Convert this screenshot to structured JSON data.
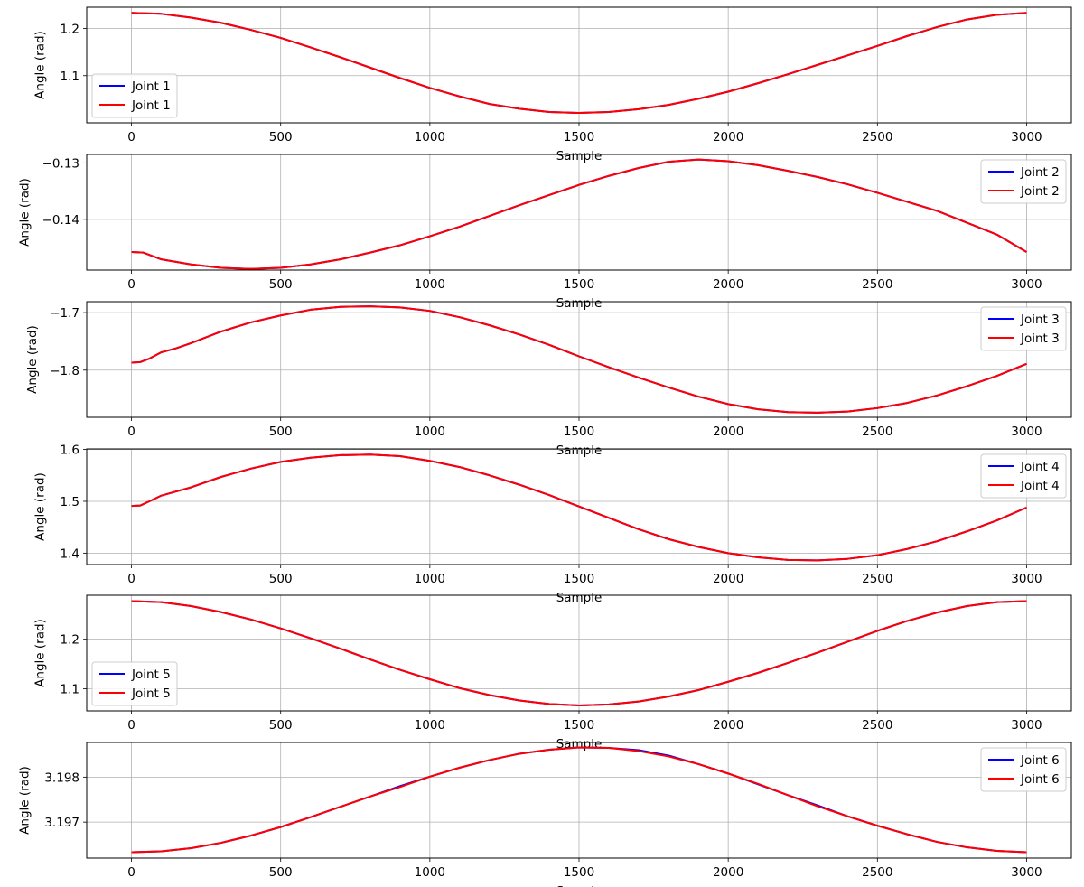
{
  "chart_data": [
    {
      "type": "line",
      "xlabel": "Sample",
      "ylabel": "Angle (rad)",
      "xlim": [
        -150,
        3150
      ],
      "ylim": [
        1.0,
        1.245
      ],
      "xticks": [
        0,
        500,
        1000,
        1500,
        2000,
        2500,
        3000
      ],
      "yticks": [
        1.1,
        1.2
      ],
      "grid": true,
      "legend_position": "lower-left",
      "x": [
        0,
        100,
        200,
        300,
        400,
        500,
        600,
        700,
        800,
        900,
        1000,
        1100,
        1200,
        1300,
        1400,
        1500,
        1600,
        1700,
        1800,
        1900,
        2000,
        2100,
        2200,
        2300,
        2400,
        2500,
        2600,
        2700,
        2800,
        2900,
        3000
      ],
      "series": [
        {
          "name": "Joint 1",
          "color": "#0000ff",
          "values": [
            1.233,
            1.231,
            1.223,
            1.212,
            1.197,
            1.18,
            1.16,
            1.139,
            1.117,
            1.095,
            1.074,
            1.056,
            1.04,
            1.03,
            1.023,
            1.021,
            1.023,
            1.029,
            1.038,
            1.051,
            1.066,
            1.084,
            1.103,
            1.123,
            1.143,
            1.163,
            1.184,
            1.203,
            1.219,
            1.229,
            1.233
          ]
        },
        {
          "name": "Joint 1",
          "color": "#ff0000",
          "values": [
            1.233,
            1.231,
            1.223,
            1.212,
            1.197,
            1.18,
            1.16,
            1.139,
            1.117,
            1.095,
            1.074,
            1.056,
            1.04,
            1.03,
            1.023,
            1.021,
            1.023,
            1.029,
            1.038,
            1.051,
            1.066,
            1.084,
            1.103,
            1.123,
            1.143,
            1.163,
            1.184,
            1.203,
            1.219,
            1.229,
            1.233
          ]
        }
      ]
    },
    {
      "type": "line",
      "xlabel": "Sample",
      "ylabel": "Angle (rad)",
      "xlim": [
        -150,
        3150
      ],
      "ylim": [
        -0.149,
        -0.1285
      ],
      "xticks": [
        0,
        500,
        1000,
        1500,
        2000,
        2500,
        3000
      ],
      "yticks": [
        -0.14,
        -0.13
      ],
      "grid": true,
      "legend_position": "upper-right",
      "x": [
        0,
        40,
        100,
        200,
        300,
        400,
        500,
        600,
        700,
        800,
        900,
        1000,
        1100,
        1200,
        1300,
        1400,
        1500,
        1600,
        1700,
        1800,
        1900,
        2000,
        2100,
        2200,
        2300,
        2400,
        2500,
        2600,
        2700,
        2800,
        2900,
        3000
      ],
      "series": [
        {
          "name": "Joint 2",
          "color": "#0000ff",
          "values": [
            -0.1458,
            -0.1459,
            -0.1471,
            -0.148,
            -0.1486,
            -0.1488,
            -0.1486,
            -0.148,
            -0.1471,
            -0.1459,
            -0.1446,
            -0.143,
            -0.1413,
            -0.1394,
            -0.1375,
            -0.1357,
            -0.1339,
            -0.1323,
            -0.1309,
            -0.1298,
            -0.1294,
            -0.1297,
            -0.1304,
            -0.1314,
            -0.1325,
            -0.1338,
            -0.1353,
            -0.1369,
            -0.1385,
            -0.1406,
            -0.1427,
            -0.1458
          ]
        },
        {
          "name": "Joint 2",
          "color": "#ff0000",
          "values": [
            -0.1458,
            -0.1459,
            -0.1471,
            -0.148,
            -0.1486,
            -0.1488,
            -0.1486,
            -0.148,
            -0.1471,
            -0.1459,
            -0.1446,
            -0.143,
            -0.1413,
            -0.1394,
            -0.1375,
            -0.1357,
            -0.1339,
            -0.1323,
            -0.1309,
            -0.1298,
            -0.1294,
            -0.1297,
            -0.1304,
            -0.1314,
            -0.1325,
            -0.1338,
            -0.1353,
            -0.1369,
            -0.1385,
            -0.1406,
            -0.1427,
            -0.1458
          ]
        }
      ]
    },
    {
      "type": "line",
      "xlabel": "Sample",
      "ylabel": "Angle (rad)",
      "xlim": [
        -150,
        3150
      ],
      "ylim": [
        -1.882,
        -1.681
      ],
      "xticks": [
        0,
        500,
        1000,
        1500,
        2000,
        2500,
        3000
      ],
      "yticks": [
        -1.8,
        -1.7
      ],
      "grid": true,
      "legend_position": "upper-right",
      "x": [
        0,
        30,
        60,
        100,
        150,
        200,
        300,
        400,
        500,
        600,
        700,
        800,
        900,
        1000,
        1100,
        1200,
        1300,
        1400,
        1500,
        1600,
        1700,
        1800,
        1900,
        2000,
        2100,
        2200,
        2300,
        2400,
        2500,
        2600,
        2700,
        2800,
        2900,
        3000
      ],
      "series": [
        {
          "name": "Joint 3",
          "color": "#0000ff",
          "values": [
            -1.787,
            -1.786,
            -1.78,
            -1.769,
            -1.762,
            -1.753,
            -1.733,
            -1.717,
            -1.705,
            -1.695,
            -1.69,
            -1.689,
            -1.691,
            -1.697,
            -1.708,
            -1.722,
            -1.738,
            -1.756,
            -1.776,
            -1.795,
            -1.813,
            -1.83,
            -1.846,
            -1.859,
            -1.868,
            -1.873,
            -1.874,
            -1.872,
            -1.866,
            -1.857,
            -1.844,
            -1.828,
            -1.81,
            -1.789
          ]
        },
        {
          "name": "Joint 3",
          "color": "#ff0000",
          "values": [
            -1.787,
            -1.786,
            -1.78,
            -1.769,
            -1.762,
            -1.753,
            -1.733,
            -1.717,
            -1.705,
            -1.695,
            -1.69,
            -1.689,
            -1.691,
            -1.697,
            -1.708,
            -1.722,
            -1.738,
            -1.756,
            -1.776,
            -1.795,
            -1.813,
            -1.83,
            -1.846,
            -1.859,
            -1.868,
            -1.873,
            -1.874,
            -1.872,
            -1.866,
            -1.857,
            -1.844,
            -1.828,
            -1.81,
            -1.789
          ]
        }
      ]
    },
    {
      "type": "line",
      "xlabel": "Sample",
      "ylabel": "Angle (rad)",
      "xlim": [
        -150,
        3150
      ],
      "ylim": [
        1.378,
        1.601
      ],
      "xticks": [
        0,
        500,
        1000,
        1500,
        2000,
        2500,
        3000
      ],
      "yticks": [
        1.4,
        1.5,
        1.6
      ],
      "grid": true,
      "legend_position": "upper-right",
      "x": [
        0,
        30,
        60,
        100,
        150,
        200,
        300,
        400,
        500,
        600,
        700,
        800,
        900,
        1000,
        1100,
        1200,
        1300,
        1400,
        1500,
        1600,
        1700,
        1800,
        1900,
        2000,
        2100,
        2200,
        2300,
        2400,
        2500,
        2600,
        2700,
        2800,
        2900,
        3000
      ],
      "series": [
        {
          "name": "Joint 4",
          "color": "#0000ff",
          "values": [
            1.491,
            1.492,
            1.5,
            1.511,
            1.519,
            1.527,
            1.547,
            1.563,
            1.576,
            1.584,
            1.589,
            1.59,
            1.587,
            1.578,
            1.566,
            1.55,
            1.532,
            1.512,
            1.49,
            1.468,
            1.446,
            1.427,
            1.412,
            1.4,
            1.392,
            1.387,
            1.386,
            1.389,
            1.396,
            1.408,
            1.423,
            1.442,
            1.463,
            1.488
          ]
        },
        {
          "name": "Joint 4",
          "color": "#ff0000",
          "values": [
            1.491,
            1.492,
            1.5,
            1.511,
            1.519,
            1.527,
            1.547,
            1.563,
            1.576,
            1.584,
            1.589,
            1.59,
            1.587,
            1.578,
            1.566,
            1.55,
            1.532,
            1.512,
            1.49,
            1.468,
            1.446,
            1.427,
            1.412,
            1.4,
            1.392,
            1.387,
            1.386,
            1.389,
            1.396,
            1.408,
            1.423,
            1.442,
            1.463,
            1.488
          ]
        }
      ]
    },
    {
      "type": "line",
      "xlabel": "Sample",
      "ylabel": "Angle (rad)",
      "xlim": [
        -150,
        3150
      ],
      "ylim": [
        1.055,
        1.289
      ],
      "xticks": [
        0,
        500,
        1000,
        1500,
        2000,
        2500,
        3000
      ],
      "yticks": [
        1.1,
        1.2
      ],
      "grid": true,
      "legend_position": "lower-left",
      "x": [
        0,
        100,
        200,
        300,
        400,
        500,
        600,
        700,
        800,
        900,
        1000,
        1100,
        1200,
        1300,
        1400,
        1500,
        1600,
        1700,
        1800,
        1900,
        2000,
        2100,
        2200,
        2300,
        2400,
        2500,
        2600,
        2700,
        2800,
        2900,
        3000
      ],
      "series": [
        {
          "name": "Joint 5",
          "color": "#0000ff",
          "values": [
            1.277,
            1.275,
            1.267,
            1.255,
            1.24,
            1.222,
            1.202,
            1.181,
            1.159,
            1.138,
            1.119,
            1.101,
            1.087,
            1.076,
            1.069,
            1.066,
            1.068,
            1.074,
            1.084,
            1.097,
            1.114,
            1.132,
            1.152,
            1.173,
            1.195,
            1.217,
            1.237,
            1.254,
            1.267,
            1.275,
            1.277
          ]
        },
        {
          "name": "Joint 5",
          "color": "#ff0000",
          "values": [
            1.277,
            1.275,
            1.267,
            1.255,
            1.24,
            1.222,
            1.202,
            1.181,
            1.159,
            1.138,
            1.119,
            1.101,
            1.087,
            1.076,
            1.069,
            1.066,
            1.068,
            1.074,
            1.084,
            1.097,
            1.114,
            1.132,
            1.152,
            1.173,
            1.195,
            1.217,
            1.237,
            1.254,
            1.267,
            1.275,
            1.277
          ]
        }
      ]
    },
    {
      "type": "line",
      "xlabel": "Sample",
      "ylabel": "Angle (rad)",
      "xlim": [
        -150,
        3150
      ],
      "ylim": [
        3.1962,
        3.19877
      ],
      "xticks": [
        0,
        500,
        1000,
        1500,
        2000,
        2500,
        3000
      ],
      "yticks": [
        3.197,
        3.198
      ],
      "grid": true,
      "legend_position": "upper-right",
      "x": [
        0,
        100,
        200,
        300,
        400,
        500,
        600,
        700,
        800,
        900,
        1000,
        1100,
        1200,
        1300,
        1400,
        1500,
        1600,
        1700,
        1800,
        1900,
        2000,
        2100,
        2200,
        2300,
        2400,
        2500,
        2600,
        2700,
        2800,
        2900,
        3000
      ],
      "series": [
        {
          "name": "Joint 6",
          "color": "#0000ff",
          "values": [
            3.19633,
            3.19635,
            3.19642,
            3.19654,
            3.1967,
            3.19689,
            3.19711,
            3.19734,
            3.19757,
            3.1978,
            3.19801,
            3.19821,
            3.19838,
            3.19852,
            3.19861,
            3.19866,
            3.19865,
            3.1986,
            3.19848,
            3.19829,
            3.19808,
            3.19784,
            3.1976,
            3.19737,
            3.19713,
            3.19692,
            3.19673,
            3.19656,
            3.19644,
            3.19636,
            3.19633
          ]
        },
        {
          "name": "Joint 6",
          "color": "#ff0000",
          "values": [
            3.19633,
            3.19635,
            3.19642,
            3.19654,
            3.1967,
            3.19689,
            3.19711,
            3.19734,
            3.19757,
            3.19778,
            3.19801,
            3.19821,
            3.19838,
            3.19852,
            3.19861,
            3.19866,
            3.19865,
            3.19858,
            3.19846,
            3.19829,
            3.19808,
            3.19785,
            3.1976,
            3.19735,
            3.19713,
            3.19692,
            3.19673,
            3.19656,
            3.19644,
            3.19636,
            3.19633
          ]
        }
      ]
    }
  ]
}
